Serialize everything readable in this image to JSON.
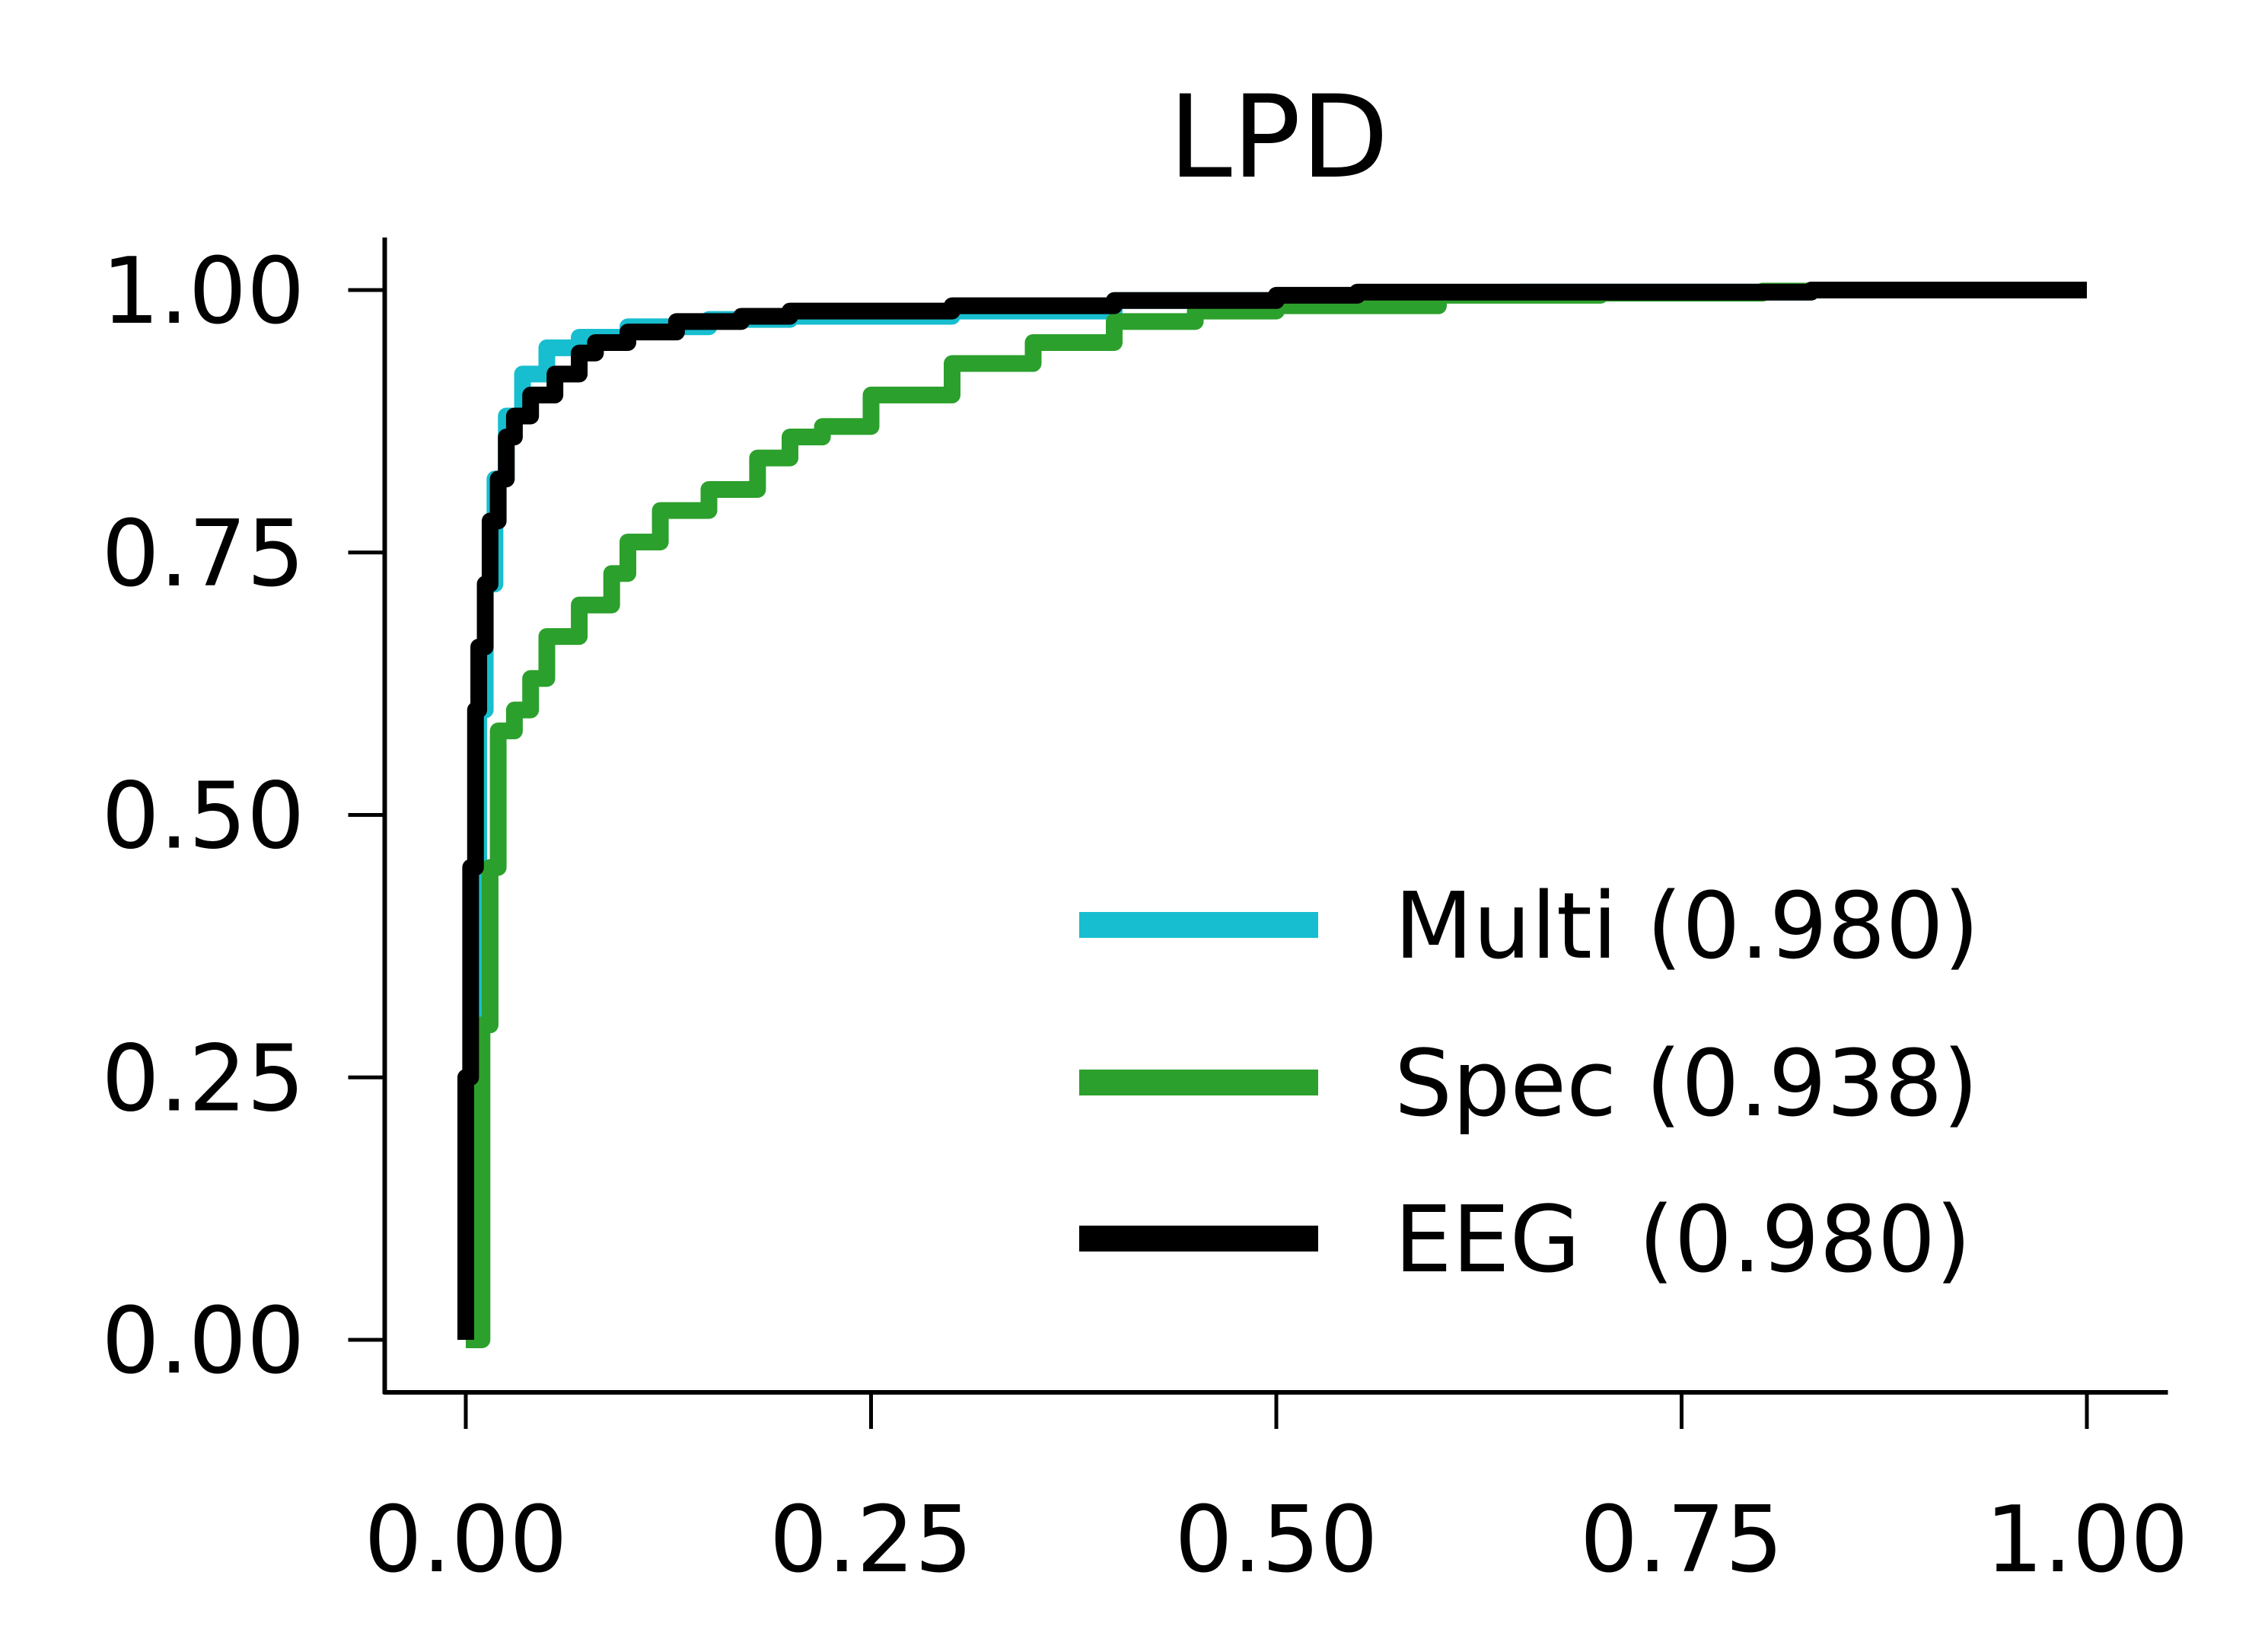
{
  "chart_data": {
    "type": "line",
    "title": "LPD",
    "xlabel": "",
    "ylabel": "",
    "xlim": [
      -0.05,
      1.05
    ],
    "ylim": [
      -0.05,
      1.05
    ],
    "x_ticks": [
      "0.00",
      "0.25",
      "0.50",
      "0.75",
      "1.00"
    ],
    "y_ticks": [
      "0.00",
      "0.25",
      "0.50",
      "0.75",
      "1.00"
    ],
    "x_tick_values": [
      0,
      0.25,
      0.5,
      0.75,
      1.0
    ],
    "y_tick_values": [
      0,
      0.25,
      0.5,
      0.75,
      1.0
    ],
    "grid": false,
    "legend_position": "lower-right",
    "series": [
      {
        "name": "Multi (0.980)",
        "color": "#17becf",
        "points": [
          [
            0,
            0
          ],
          [
            0,
            0.25
          ],
          [
            0.005,
            0.45
          ],
          [
            0.008,
            0.6
          ],
          [
            0.012,
            0.72
          ],
          [
            0.018,
            0.82
          ],
          [
            0.025,
            0.88
          ],
          [
            0.035,
            0.92
          ],
          [
            0.05,
            0.945
          ],
          [
            0.07,
            0.955
          ],
          [
            0.1,
            0.965
          ],
          [
            0.15,
            0.972
          ],
          [
            0.2,
            0.975
          ],
          [
            0.3,
            0.98
          ],
          [
            0.4,
            0.99
          ],
          [
            0.55,
            0.997
          ],
          [
            0.65,
            0.998
          ],
          [
            0.83,
            1.0
          ],
          [
            1.0,
            1.0
          ]
        ]
      },
      {
        "name": "Spec (0.938)",
        "color": "#2ca02c",
        "points": [
          [
            0,
            0
          ],
          [
            0.01,
            0.3
          ],
          [
            0.015,
            0.45
          ],
          [
            0.02,
            0.58
          ],
          [
            0.03,
            0.6
          ],
          [
            0.04,
            0.63
          ],
          [
            0.05,
            0.67
          ],
          [
            0.07,
            0.7
          ],
          [
            0.09,
            0.73
          ],
          [
            0.1,
            0.76
          ],
          [
            0.12,
            0.79
          ],
          [
            0.15,
            0.81
          ],
          [
            0.18,
            0.84
          ],
          [
            0.2,
            0.86
          ],
          [
            0.22,
            0.87
          ],
          [
            0.25,
            0.9
          ],
          [
            0.3,
            0.93
          ],
          [
            0.35,
            0.95
          ],
          [
            0.4,
            0.97
          ],
          [
            0.45,
            0.98
          ],
          [
            0.5,
            0.985
          ],
          [
            0.6,
            0.995
          ],
          [
            0.7,
            0.997
          ],
          [
            0.8,
            0.999
          ],
          [
            0.83,
            1.0
          ],
          [
            1.0,
            1.0
          ]
        ]
      },
      {
        "name": "EEG  (0.980)",
        "color": "#000000",
        "points": [
          [
            0,
            0
          ],
          [
            0,
            0.25
          ],
          [
            0.003,
            0.45
          ],
          [
            0.006,
            0.6
          ],
          [
            0.008,
            0.66
          ],
          [
            0.012,
            0.72
          ],
          [
            0.015,
            0.78
          ],
          [
            0.02,
            0.82
          ],
          [
            0.025,
            0.86
          ],
          [
            0.03,
            0.88
          ],
          [
            0.04,
            0.9
          ],
          [
            0.055,
            0.92
          ],
          [
            0.07,
            0.94
          ],
          [
            0.08,
            0.95
          ],
          [
            0.1,
            0.96
          ],
          [
            0.13,
            0.97
          ],
          [
            0.17,
            0.975
          ],
          [
            0.2,
            0.98
          ],
          [
            0.3,
            0.985
          ],
          [
            0.4,
            0.99
          ],
          [
            0.5,
            0.995
          ],
          [
            0.55,
            0.998
          ],
          [
            0.83,
            1.0
          ],
          [
            1.0,
            1.0
          ]
        ]
      }
    ]
  }
}
